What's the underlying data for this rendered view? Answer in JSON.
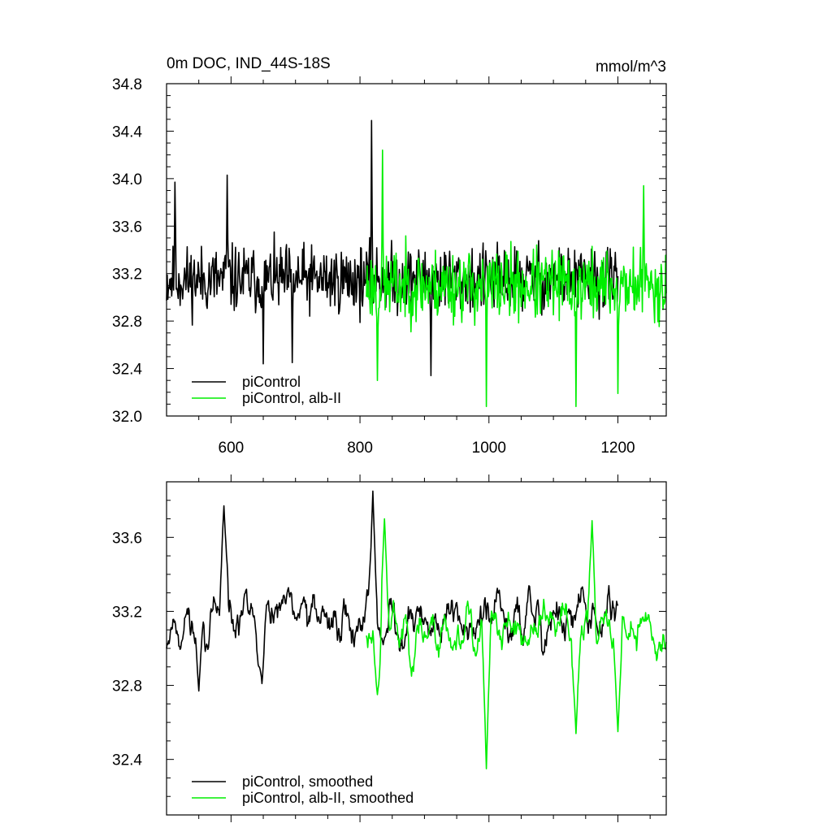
{
  "chart_data": [
    {
      "type": "line",
      "title": "0m DOC, IND_44S-18S",
      "units": "mmol/m^3",
      "xlim": [
        500,
        1275
      ],
      "ylim": [
        32.0,
        34.8
      ],
      "x_ticks": [
        600,
        800,
        1000,
        1200
      ],
      "y_ticks": [
        32.0,
        32.4,
        32.8,
        33.2,
        33.6,
        34.0,
        34.4,
        34.8
      ],
      "y_tick_labels": [
        "32.0",
        "32.4",
        "32.8",
        "33.2",
        "33.6",
        "34.0",
        "34.4",
        "34.8"
      ],
      "grid": false,
      "legend_position": "bottom-left",
      "series": [
        {
          "name": "piControl",
          "color": "#000000",
          "x_start": 500,
          "x_end": 1200,
          "mean": 33.15,
          "noise_amp": 0.42,
          "seed": 11,
          "peaks": [
            [
              513,
              33.97
            ],
            [
              594,
              34.03
            ],
            [
              818,
              34.49
            ],
            [
              650,
              32.44
            ],
            [
              695,
              32.45
            ],
            [
              910,
              32.34
            ]
          ]
        },
        {
          "name": "piControl, alb-II",
          "color": "#00ee00",
          "x_start": 810,
          "x_end": 1275,
          "mean": 33.1,
          "noise_amp": 0.45,
          "seed": 23,
          "peaks": [
            [
              835,
              34.24
            ],
            [
              996,
              32.08
            ],
            [
              1135,
              32.08
            ],
            [
              1200,
              32.19
            ],
            [
              1240,
              33.94
            ],
            [
              827,
              32.3
            ]
          ]
        }
      ]
    },
    {
      "type": "line",
      "xlim": [
        500,
        1275
      ],
      "ylim": [
        32.1,
        33.9
      ],
      "x_ticks": [
        600,
        800,
        1000,
        1200
      ],
      "y_ticks": [
        32.4,
        32.8,
        33.2,
        33.6
      ],
      "y_tick_labels": [
        "32.4",
        "32.8",
        "33.2",
        "33.6"
      ],
      "grid": false,
      "legend_position": "bottom-left",
      "series": [
        {
          "name": "piControl, smoothed",
          "color": "#000000",
          "x_start": 500,
          "x_end": 1200,
          "mean": 33.15,
          "noise_amp": 0.22,
          "seed": 11,
          "peaks": [
            [
              589,
              33.77
            ],
            [
              820,
              33.85
            ],
            [
              550,
              32.77
            ],
            [
              648,
              32.81
            ]
          ]
        },
        {
          "name": "piControl, alb-II, smoothed",
          "color": "#00ee00",
          "x_start": 810,
          "x_end": 1275,
          "mean": 33.1,
          "noise_amp": 0.25,
          "seed": 23,
          "peaks": [
            [
              996,
              32.35
            ],
            [
              1135,
              32.54
            ],
            [
              1200,
              32.55
            ],
            [
              1160,
              33.69
            ],
            [
              838,
              33.7
            ],
            [
              827,
              32.75
            ]
          ]
        }
      ]
    }
  ]
}
